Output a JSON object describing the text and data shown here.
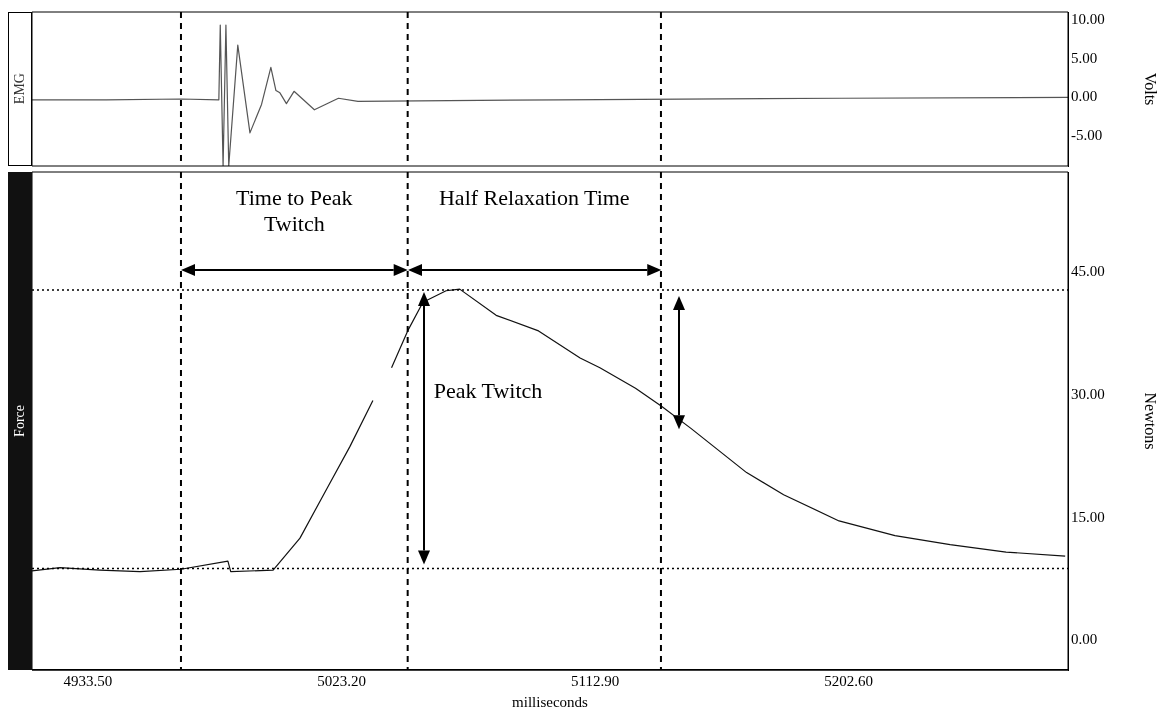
{
  "chart_data": [
    {
      "type": "line",
      "ylabel": "EMG",
      "y2label": "Volts",
      "xlim": [
        4913.7,
        5280.2
      ],
      "y2lim": [
        -8.9,
        11.1
      ],
      "y2ticks": [
        {
          "value": -5,
          "label": "-5.00"
        },
        {
          "value": 0,
          "label": "0.00"
        },
        {
          "value": 5,
          "label": "5.00"
        },
        {
          "value": 10,
          "label": "10.00"
        }
      ],
      "tick_labels": "y",
      "grid": false,
      "legend": false,
      "marker": "none",
      "line_style": "solid",
      "series": [
        {
          "color": "#555555",
          "axis": "y2",
          "x": [
            4913.7,
            4940,
            4966.4,
            4979.8,
            4980.3,
            4981.3,
            4982.3,
            4983.3,
            4986.5,
            4990.8,
            4994.9,
            4998.2,
            5000.0,
            5001.4,
            5003.7,
            5006.4,
            5013.6,
            5022.1,
            5029.0,
            5100,
            5200,
            5280.2
          ],
          "values": [
            -0.3,
            -0.3,
            -0.2,
            -0.3,
            9.4,
            -8.9,
            9.4,
            -8.9,
            6.8,
            -4.6,
            -0.9,
            3.9,
            0.9,
            0.6,
            -0.8,
            0.8,
            -1.6,
            -0.1,
            -0.5,
            -0.3,
            -0.1,
            0
          ]
        }
      ],
      "ref_lines": [
        {
          "axis": "x",
          "value": 4966.4,
          "line_style": "dashed",
          "color": "#000000"
        },
        {
          "axis": "x",
          "value": 5046.6,
          "line_style": "dashed",
          "color": "#000000"
        },
        {
          "axis": "x",
          "value": 5136.2,
          "line_style": "dashed",
          "color": "#000000"
        }
      ]
    },
    {
      "type": "line",
      "ylabel": "Force",
      "y2label": "Newtons",
      "xlabel": "milliseconds",
      "xlim": [
        4913.7,
        5280.2
      ],
      "xticks": [
        {
          "value": 4933.5,
          "label": "4933.50"
        },
        {
          "value": 5023.2,
          "label": "5023.20"
        },
        {
          "value": 5112.9,
          "label": "5112.90"
        },
        {
          "value": 5202.6,
          "label": "5202.60"
        }
      ],
      "y2lim": [
        -3.6,
        57.2
      ],
      "y2ticks": [
        {
          "value": 0,
          "label": "0.00"
        },
        {
          "value": 15,
          "label": "15.00"
        },
        {
          "value": 30,
          "label": "30.00"
        },
        {
          "value": 45,
          "label": "45.00"
        }
      ],
      "grid": false,
      "legend": false,
      "marker": "none",
      "line_style": "solid",
      "series": [
        {
          "color": "#111111",
          "axis": "y2",
          "x": [
            4913.7,
            4923.6,
            4937.7,
            4951.9,
            4966.4,
            4983.0,
            4984.0,
            4999.0,
            5008.5,
            5018.1,
            5026.2,
            5034.3,
            5037.5,
            5040.9,
            5046.6,
            5052.0,
            5060.2,
            5065.0,
            5077.9,
            5092.9,
            5107.6,
            5114.6,
            5127.2,
            5136.4,
            5146.8,
            5166.5,
            5179.6,
            5199.2,
            5219.0,
            5238.5,
            5258.3,
            5279.2
          ],
          "values": [
            8.5,
            8.9,
            8.6,
            8.4,
            8.7,
            9.7,
            8.4,
            8.6,
            12.5,
            18.6,
            23.7,
            29.3,
            null,
            33.3,
            37.8,
            41.3,
            42.7,
            42.9,
            39.7,
            37.8,
            34.5,
            33.3,
            30.8,
            28.6,
            25.9,
            20.5,
            17.8,
            14.6,
            12.8,
            11.7,
            10.8,
            10.3
          ]
        }
      ],
      "ref_lines": [
        {
          "axis": "x",
          "value": 4966.4,
          "line_style": "dashed",
          "color": "#000000"
        },
        {
          "axis": "x",
          "value": 5046.6,
          "line_style": "dashed",
          "color": "#000000"
        },
        {
          "axis": "x",
          "value": 5136.2,
          "line_style": "dashed",
          "color": "#000000"
        },
        {
          "axis": "y2",
          "value": 42.8,
          "line_style": "dotted",
          "color": "#000000"
        },
        {
          "axis": "y2",
          "value": 8.8,
          "line_style": "dotted",
          "color": "#000000"
        }
      ],
      "annotations": [
        "Time to Peak Twitch",
        "Half Relaxation Time",
        "Peak Twitch"
      ]
    }
  ]
}
